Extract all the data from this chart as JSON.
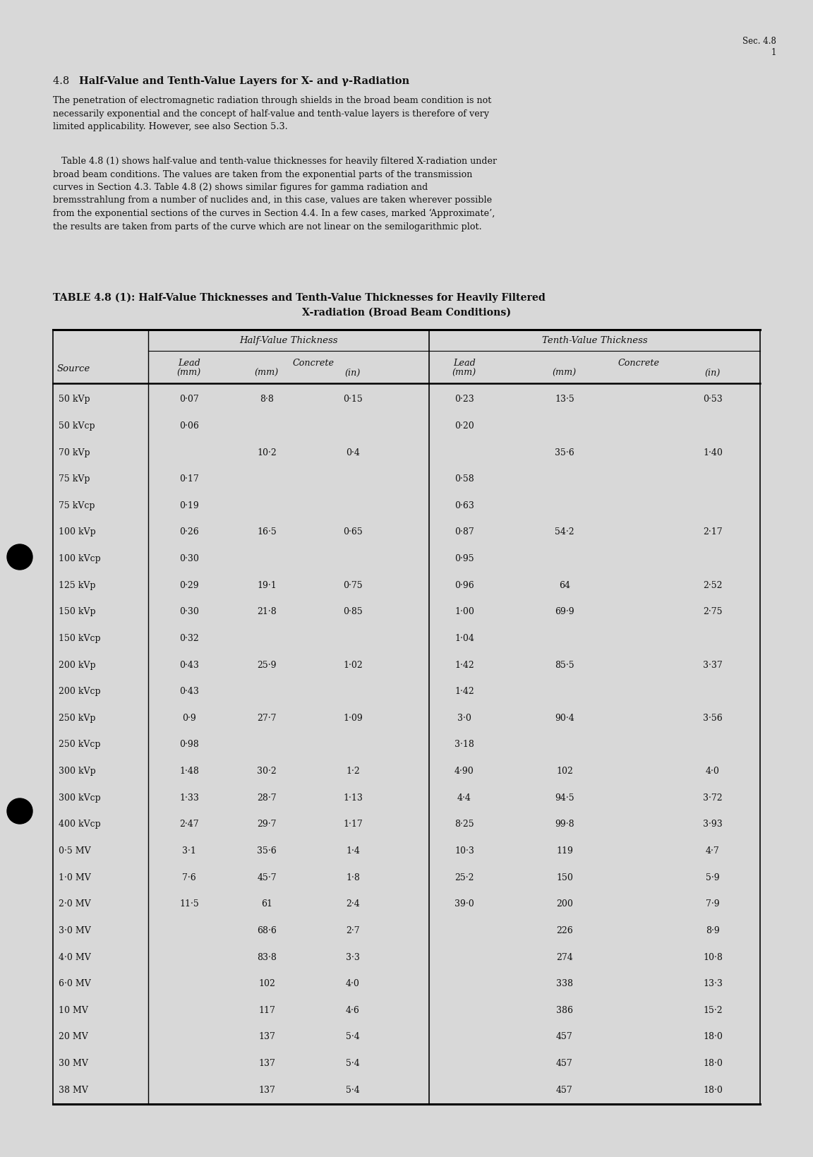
{
  "page_header_line1": "Sec. 4.8",
  "page_header_line2": "1",
  "section_title_normal": "4.8  ",
  "section_title_bold": "Half-Value and Tenth-Value Layers for X- and γ-Radiation",
  "para1": "The penetration of electromagnetic radiation through shields in the broad beam condition is not\nnecessarily exponential and the concept of half-value and tenth-value layers is therefore of very\nlimited applicability. However, see also Section 5.3.",
  "para2_indent": "   Table 4.8 (1) shows half-value and tenth-value thicknesses for heavily filtered X-radiation under\nbroad beam conditions. The values are taken from the exponential parts of the transmission\ncurves in Section 4.3. Table 4.8 (2) shows similar figures for gamma radiation and\nbremsstrahlung from a number of nuclides and, in this case, values are taken wherever possible\nfrom the exponential sections of the curves in Section 4.4. In a few cases, marked ‘Approximate’,\nthe results are taken from parts of the curve which are not linear on the semilogarithmic plot.",
  "table_title_line1": "TABLE 4.8 (1): Half-Value Thicknesses and Tenth-Value Thicknesses for Heavily Filtered",
  "table_title_line2": "X-radiation (Broad Beam Conditions)",
  "col_header_hvt": "Half-Value Thickness",
  "col_header_tvt": "Tenth-Value Thickness",
  "rows": [
    [
      "50 kVp",
      "0·07",
      "8·8",
      "0·15",
      "0·23",
      "13·5",
      "0·53"
    ],
    [
      "50 kVcp",
      "0·06",
      "",
      "",
      "0·20",
      "",
      ""
    ],
    [
      "70 kVp",
      "",
      "10·2",
      "0·4",
      "",
      "35·6",
      "1·40"
    ],
    [
      "75 kVp",
      "0·17",
      "",
      "",
      "0·58",
      "",
      ""
    ],
    [
      "75 kVcp",
      "0·19",
      "",
      "",
      "0·63",
      "",
      ""
    ],
    [
      "100 kVp",
      "0·26",
      "16·5",
      "0·65",
      "0·87",
      "54·2",
      "2·17"
    ],
    [
      "100 kVcp",
      "0·30",
      "",
      "",
      "0·95",
      "",
      ""
    ],
    [
      "125 kVp",
      "0·29",
      "19·1",
      "0·75",
      "0·96",
      "64",
      "2·52"
    ],
    [
      "150 kVp",
      "0·30",
      "21·8",
      "0·85",
      "1·00",
      "69·9",
      "2·75"
    ],
    [
      "150 kVcp",
      "0·32",
      "",
      "",
      "1·04",
      "",
      ""
    ],
    [
      "200 kVp",
      "0·43",
      "25·9",
      "1·02",
      "1·42",
      "85·5",
      "3·37"
    ],
    [
      "200 kVcp",
      "0·43",
      "",
      "",
      "1·42",
      "",
      ""
    ],
    [
      "250 kVp",
      "0·9",
      "27·7",
      "1·09",
      "3·0",
      "90·4",
      "3·56"
    ],
    [
      "250 kVcp",
      "0·98",
      "",
      "",
      "3·18",
      "",
      ""
    ],
    [
      "300 kVp",
      "1·48",
      "30·2",
      "1·2",
      "4·90",
      "102",
      "4·0"
    ],
    [
      "300 kVcp",
      "1·33",
      "28·7",
      "1·13",
      "4·4",
      "94·5",
      "3·72"
    ],
    [
      "400 kVcp",
      "2·47",
      "29·7",
      "1·17",
      "8·25",
      "99·8",
      "3·93"
    ],
    [
      "0·5 MV",
      "3·1",
      "35·6",
      "1·4",
      "10·3",
      "119",
      "4·7"
    ],
    [
      "1·0 MV",
      "7·6",
      "45·7",
      "1·8",
      "25·2",
      "150",
      "5·9"
    ],
    [
      "2·0 MV",
      "11·5",
      "61",
      "2·4",
      "39·0",
      "200",
      "7·9"
    ],
    [
      "3·0 MV",
      "",
      "68·6",
      "2·7",
      "",
      "226",
      "8·9"
    ],
    [
      "4·0 MV",
      "",
      "83·8",
      "3·3",
      "",
      "274",
      "10·8"
    ],
    [
      "6·0 MV",
      "",
      "102",
      "4·0",
      "",
      "338",
      "13·3"
    ],
    [
      "10 MV",
      "",
      "117",
      "4·6",
      "",
      "386",
      "15·2"
    ],
    [
      "20 MV",
      "",
      "137",
      "5·4",
      "",
      "457",
      "18·0"
    ],
    [
      "30 MV",
      "",
      "137",
      "5·4",
      "",
      "457",
      "18·0"
    ],
    [
      "38 MV",
      "",
      "137",
      "5·4",
      "",
      "457",
      "18·0"
    ]
  ],
  "bg_color": "#d8d8d8",
  "page_bg": "#d8d8d8",
  "text_color": "#111111",
  "font_family": "DejaVu Serif",
  "body_fontsize": 9.2,
  "table_fontsize": 9.0,
  "header_fontsize": 9.5
}
